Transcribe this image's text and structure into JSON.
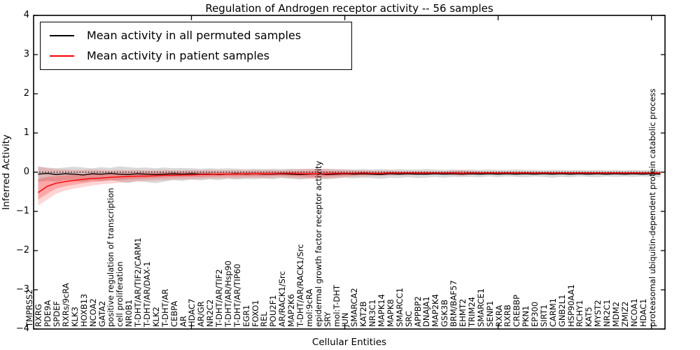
{
  "legend": {
    "entries": [
      {
        "label": "Mean activity in all permuted samples",
        "color": "#000000"
      },
      {
        "label": "Mean activity in patient samples",
        "color": "#ff0000"
      }
    ],
    "position": "upper left"
  },
  "chart_data": {
    "type": "line",
    "title": "Regulation of Androgen receptor activity -- 56 samples",
    "xlabel": "Cellular Entities",
    "ylabel": "Inferred Activity",
    "ylim": [
      -4,
      4
    ],
    "yticks": [
      4,
      3,
      2,
      1,
      0,
      -1,
      -2,
      -3,
      -4
    ],
    "ytick_labels": [
      "4",
      "3",
      "2",
      "1",
      "0",
      "−1",
      "−2",
      "−3",
      "−4"
    ],
    "grid": false,
    "zero_reference_line": 0,
    "categories": [
      "TMPRSS2",
      "RXRG",
      "PDE9A",
      "SPDEF",
      "RXRs/9cRA",
      "KLK3",
      "HOXB13",
      "NCOA2",
      "GATA2",
      "positive regulation of transcription",
      "cell proliferation",
      "NR0B1",
      "T-DHT/AR/TIF2/CARM1",
      "T-DHT/AR/DAX-1",
      "KLK2",
      "T-DHT/AR",
      "CEBPA",
      "AR",
      "HDAC7",
      "AR/GR",
      "NR2C2",
      "T-DHT/AR/TIF2",
      "T-DHT/AR/Hsp90",
      "T-DHT/AR/TIP60",
      "EGR1",
      "FOXO1",
      "REL",
      "POU2F1",
      "AR/RACK1/Src",
      "MAP2K6",
      "T-DHT/AR/RACK1/Src",
      "mol:9cRA",
      "epidermal growth factor receptor activity",
      "SRY",
      "mol:T-DHT",
      "JUN",
      "SMARCA2",
      "KAT2B",
      "NR3C1",
      "MAPK14",
      "MAPK8",
      "SMARCC1",
      "SRC",
      "APPBP2",
      "DNAJA1",
      "MAP2K4",
      "GSK3B",
      "BRM/BAF57",
      "EHMT2",
      "TRIM24",
      "SMARCE1",
      "SENP1",
      "RXRA",
      "RXRB",
      "CREBBP",
      "PKN1",
      "EP300",
      "SIRT1",
      "CARM1",
      "GNB2L1",
      "HSP90AA1",
      "RCHY1",
      "KAT5",
      "MYST2",
      "NR2C1",
      "MDM2",
      "ZMIZ2",
      "NCOA1",
      "HDAC1",
      "proteasomal ubiquitin-dependent protein catabolic process"
    ],
    "series": [
      {
        "name": "Mean activity in all permuted samples",
        "color": "#000000",
        "values": [
          -0.05,
          -0.03,
          -0.06,
          -0.04,
          -0.05,
          -0.07,
          -0.04,
          -0.05,
          -0.03,
          -0.05,
          -0.06,
          -0.04,
          -0.05,
          -0.06,
          -0.05,
          -0.04,
          -0.05,
          -0.04,
          -0.05,
          -0.05,
          -0.06,
          -0.05,
          -0.04,
          -0.05,
          -0.04,
          -0.05,
          -0.05,
          -0.04,
          -0.05,
          -0.06,
          -0.05,
          -0.04,
          -0.06,
          -0.05,
          -0.04,
          -0.05,
          -0.04,
          -0.05,
          -0.06,
          -0.04,
          -0.05,
          -0.04,
          -0.05,
          -0.05,
          -0.04,
          -0.05,
          -0.04,
          -0.05,
          -0.04,
          -0.05,
          -0.04,
          -0.05,
          -0.04,
          -0.05,
          -0.04,
          -0.05,
          -0.04,
          -0.05,
          -0.04,
          -0.05,
          -0.04,
          -0.05,
          -0.04,
          -0.05,
          -0.04,
          -0.05,
          -0.04,
          -0.05,
          -0.04,
          -0.05
        ]
      },
      {
        "name": "Mean activity in patient samples",
        "color": "#ff0000",
        "values": [
          -0.52,
          -0.36,
          -0.28,
          -0.24,
          -0.21,
          -0.18,
          -0.16,
          -0.15,
          -0.13,
          -0.12,
          -0.11,
          -0.1,
          -0.1,
          -0.09,
          -0.08,
          -0.08,
          -0.07,
          -0.07,
          -0.06,
          -0.06,
          -0.05,
          -0.05,
          -0.05,
          -0.04,
          -0.04,
          -0.04,
          -0.04,
          -0.03,
          -0.03,
          -0.04,
          -0.04,
          -0.04,
          -0.04,
          -0.03,
          -0.03,
          -0.03,
          -0.02,
          -0.03,
          -0.03,
          -0.02,
          -0.02,
          -0.02,
          -0.02,
          -0.02,
          -0.02,
          -0.02,
          -0.02,
          -0.03,
          -0.02,
          -0.02,
          -0.02,
          -0.02,
          -0.02,
          -0.02,
          -0.02,
          -0.02,
          -0.02,
          -0.02,
          -0.02,
          -0.02,
          -0.02,
          -0.02,
          -0.02,
          -0.02,
          -0.02,
          -0.02,
          -0.02,
          -0.02,
          -0.02,
          -0.02
        ]
      }
    ],
    "bands": [
      {
        "name": "permuted-samples-range",
        "color": "#808080",
        "opacity": 0.3,
        "range": [
          [
            -0.25,
            0.14
          ],
          [
            -0.22,
            0.12
          ],
          [
            -0.24,
            0.1
          ],
          [
            -0.2,
            0.12
          ],
          [
            -0.22,
            0.14
          ],
          [
            -0.25,
            0.12
          ],
          [
            -0.21,
            0.1
          ],
          [
            -0.23,
            0.13
          ],
          [
            -0.2,
            0.11
          ],
          [
            -0.24,
            0.15
          ],
          [
            -0.28,
            0.13
          ],
          [
            -0.22,
            0.11
          ],
          [
            -0.25,
            0.12
          ],
          [
            -0.28,
            0.1
          ],
          [
            -0.24,
            0.12
          ],
          [
            -0.2,
            0.1
          ],
          [
            -0.22,
            0.11
          ],
          [
            -0.19,
            0.1
          ],
          [
            -0.21,
            0.09
          ],
          [
            -0.18,
            0.1
          ],
          [
            -0.2,
            0.09
          ],
          [
            -0.17,
            0.1
          ],
          [
            -0.19,
            0.09
          ],
          [
            -0.17,
            0.08
          ],
          [
            -0.18,
            0.09
          ],
          [
            -0.16,
            0.08
          ],
          [
            -0.18,
            0.09
          ],
          [
            -0.15,
            0.08
          ],
          [
            -0.17,
            0.09
          ],
          [
            -0.19,
            0.08
          ],
          [
            -0.16,
            0.09
          ],
          [
            -0.15,
            0.08
          ],
          [
            -0.18,
            0.09
          ],
          [
            -0.16,
            0.08
          ],
          [
            -0.14,
            0.08
          ],
          [
            -0.16,
            0.07
          ],
          [
            -0.14,
            0.08
          ],
          [
            -0.15,
            0.07
          ],
          [
            -0.17,
            0.08
          ],
          [
            -0.14,
            0.07
          ],
          [
            -0.15,
            0.08
          ],
          [
            -0.13,
            0.07
          ],
          [
            -0.15,
            0.07
          ],
          [
            -0.14,
            0.08
          ],
          [
            -0.12,
            0.07
          ],
          [
            -0.14,
            0.06
          ],
          [
            -0.12,
            0.07
          ],
          [
            -0.13,
            0.06
          ],
          [
            -0.12,
            0.07
          ],
          [
            -0.13,
            0.06
          ],
          [
            -0.11,
            0.07
          ],
          [
            -0.13,
            0.06
          ],
          [
            -0.11,
            0.06
          ],
          [
            -0.12,
            0.07
          ],
          [
            -0.13,
            0.06
          ],
          [
            -0.11,
            0.06
          ],
          [
            -0.12,
            0.05
          ],
          [
            -0.14,
            0.06
          ],
          [
            -0.12,
            0.06
          ],
          [
            -0.13,
            0.05
          ],
          [
            -0.11,
            0.06
          ],
          [
            -0.12,
            0.05
          ],
          [
            -0.13,
            0.06
          ],
          [
            -0.11,
            0.05
          ],
          [
            -0.12,
            0.06
          ],
          [
            -0.11,
            0.05
          ],
          [
            -0.12,
            0.06
          ],
          [
            -0.11,
            0.05
          ],
          [
            -0.12,
            0.06
          ],
          [
            -0.13,
            0.05
          ]
        ]
      },
      {
        "name": "patient-samples-range-outer",
        "color": "#ff0000",
        "opacity": 0.16,
        "range": [
          [
            -0.85,
            0.15
          ],
          [
            -0.7,
            0.1
          ],
          [
            -0.55,
            0.08
          ],
          [
            -0.47,
            0.07
          ],
          [
            -0.42,
            0.06
          ],
          [
            -0.38,
            0.06
          ],
          [
            -0.34,
            0.07
          ],
          [
            -0.31,
            0.06
          ],
          [
            -0.29,
            0.05
          ],
          [
            -0.27,
            0.06
          ],
          [
            -0.25,
            0.05
          ],
          [
            -0.24,
            0.06
          ],
          [
            -0.22,
            0.05
          ],
          [
            -0.21,
            0.05
          ],
          [
            -0.2,
            0.06
          ],
          [
            -0.19,
            0.05
          ],
          [
            -0.18,
            0.05
          ],
          [
            -0.18,
            0.06
          ],
          [
            -0.17,
            0.05
          ],
          [
            -0.16,
            0.06
          ],
          [
            -0.16,
            0.05
          ],
          [
            -0.15,
            0.05
          ],
          [
            -0.16,
            0.06
          ],
          [
            -0.15,
            0.05
          ],
          [
            -0.14,
            0.06
          ],
          [
            -0.15,
            0.05
          ],
          [
            -0.14,
            0.06
          ],
          [
            -0.13,
            0.05
          ],
          [
            -0.15,
            0.07
          ],
          [
            -0.16,
            0.08
          ],
          [
            -0.17,
            0.08
          ],
          [
            -0.17,
            0.09
          ],
          [
            -0.16,
            0.08
          ],
          [
            -0.15,
            0.07
          ],
          [
            -0.13,
            0.06
          ],
          [
            -0.12,
            0.05
          ],
          [
            -0.11,
            0.05
          ],
          [
            -0.1,
            0.04
          ],
          [
            -0.1,
            0.04
          ],
          [
            -0.09,
            0.04
          ],
          [
            -0.08,
            0.03
          ],
          [
            -0.08,
            0.03
          ],
          [
            -0.07,
            0.03
          ],
          [
            -0.07,
            0.03
          ],
          [
            -0.06,
            0.02
          ],
          [
            -0.06,
            0.02
          ],
          [
            -0.08,
            0.04
          ],
          [
            -0.09,
            0.05
          ],
          [
            -0.07,
            0.03
          ],
          [
            -0.06,
            0.02
          ],
          [
            -0.05,
            0.02
          ],
          [
            -0.05,
            0.02
          ],
          [
            -0.05,
            0.02
          ],
          [
            -0.05,
            0.02
          ],
          [
            -0.05,
            0.02
          ],
          [
            -0.04,
            0.01
          ],
          [
            -0.04,
            0.01
          ],
          [
            -0.04,
            0.01
          ],
          [
            -0.04,
            0.01
          ],
          [
            -0.04,
            0.01
          ],
          [
            -0.04,
            0.01
          ],
          [
            -0.04,
            0.01
          ],
          [
            -0.04,
            0.01
          ],
          [
            -0.04,
            0.01
          ],
          [
            -0.04,
            0.01
          ],
          [
            -0.04,
            0.01
          ],
          [
            -0.04,
            0.01
          ],
          [
            -0.04,
            0.01
          ],
          [
            -0.04,
            0.01
          ],
          [
            -0.04,
            0.01
          ]
        ]
      },
      {
        "name": "patient-samples-range-inner",
        "color": "#ff0000",
        "opacity": 0.22,
        "range": [
          [
            -0.7,
            -0.18
          ],
          [
            -0.55,
            -0.12
          ],
          [
            -0.42,
            -0.1
          ],
          [
            -0.36,
            -0.08
          ],
          [
            -0.32,
            -0.07
          ],
          [
            -0.28,
            -0.06
          ],
          [
            -0.25,
            -0.05
          ],
          [
            -0.23,
            -0.04
          ],
          [
            -0.21,
            -0.04
          ],
          [
            -0.2,
            -0.03
          ],
          [
            -0.18,
            -0.03
          ],
          [
            -0.17,
            -0.02
          ],
          [
            -0.16,
            -0.02
          ],
          [
            -0.15,
            -0.02
          ],
          [
            -0.14,
            -0.01
          ],
          [
            -0.13,
            -0.01
          ],
          [
            -0.13,
            -0.01
          ],
          [
            -0.12,
            -0.01
          ],
          [
            -0.12,
            -0.01
          ],
          [
            -0.11,
            0.0
          ],
          [
            -0.11,
            0.0
          ],
          [
            -0.1,
            0.0
          ],
          [
            -0.11,
            0.0
          ],
          [
            -0.1,
            0.0
          ],
          [
            -0.1,
            0.01
          ],
          [
            -0.1,
            0.0
          ],
          [
            -0.09,
            0.01
          ],
          [
            -0.09,
            0.01
          ],
          [
            -0.1,
            0.02
          ],
          [
            -0.11,
            0.02
          ],
          [
            -0.12,
            0.02
          ],
          [
            -0.12,
            0.03
          ],
          [
            -0.11,
            0.02
          ],
          [
            -0.1,
            0.02
          ],
          [
            -0.09,
            0.01
          ],
          [
            -0.08,
            0.01
          ],
          [
            -0.07,
            0.01
          ],
          [
            -0.07,
            0.01
          ],
          [
            -0.07,
            0.0
          ],
          [
            -0.06,
            0.01
          ],
          [
            -0.05,
            0.0
          ],
          [
            -0.05,
            0.0
          ],
          [
            -0.05,
            0.0
          ],
          [
            -0.05,
            0.0
          ],
          [
            -0.04,
            0.0
          ],
          [
            -0.04,
            0.0
          ],
          [
            -0.05,
            0.01
          ],
          [
            -0.06,
            0.02
          ],
          [
            -0.05,
            0.01
          ],
          [
            -0.04,
            0.0
          ],
          [
            -0.04,
            0.0
          ],
          [
            -0.04,
            0.0
          ],
          [
            -0.04,
            0.0
          ],
          [
            -0.04,
            0.0
          ],
          [
            -0.04,
            0.0
          ],
          [
            -0.03,
            0.0
          ],
          [
            -0.03,
            0.0
          ],
          [
            -0.03,
            0.0
          ],
          [
            -0.03,
            0.0
          ],
          [
            -0.03,
            0.0
          ],
          [
            -0.03,
            0.0
          ],
          [
            -0.03,
            0.0
          ],
          [
            -0.03,
            0.0
          ],
          [
            -0.03,
            0.0
          ],
          [
            -0.03,
            0.0
          ],
          [
            -0.03,
            0.0
          ],
          [
            -0.03,
            0.0
          ],
          [
            -0.03,
            0.0
          ],
          [
            -0.03,
            0.0
          ],
          [
            -0.03,
            0.0
          ]
        ]
      }
    ]
  }
}
